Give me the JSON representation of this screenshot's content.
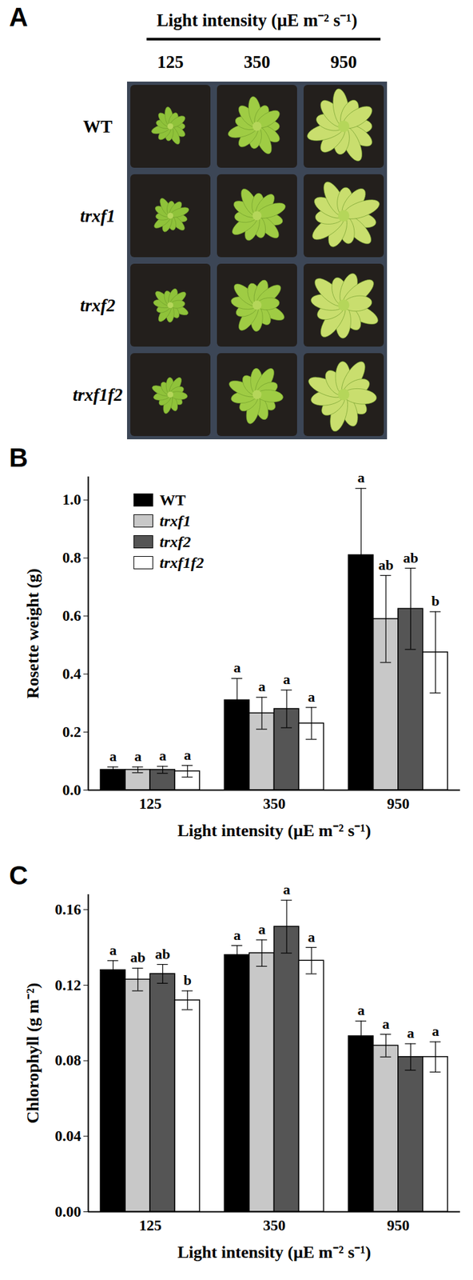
{
  "panel_a": {
    "panel": "A",
    "header": "Light intensity (µE m⁻² s⁻¹)",
    "columns": [
      "125",
      "350",
      "950"
    ],
    "rows": [
      "WT",
      "trxf1",
      "trxf2",
      "trxf1f2"
    ]
  },
  "chart_data": [
    {
      "panel": "B",
      "type": "bar",
      "categories": [
        "125",
        "350",
        "950"
      ],
      "xlabel": "Light intensity (µE m⁻² s⁻¹)",
      "ylabel": "Rosette weight (g)",
      "ylim": [
        0,
        1.08
      ],
      "yticks": [
        {
          "value": 0,
          "label": "0.0"
        },
        0.2,
        0.4,
        0.6,
        0.8,
        {
          "value": 1,
          "label": "1.0"
        }
      ],
      "legend": "top-left",
      "series": [
        {
          "name": "WT",
          "color": "#000000",
          "values": [
            0.07,
            0.31,
            0.81
          ],
          "errors": [
            0.01,
            0.075,
            0.23
          ],
          "letters": [
            "a",
            "a",
            "a"
          ]
        },
        {
          "name": "trxf1",
          "color": "#c8c8c8",
          "values": [
            0.07,
            0.265,
            0.59
          ],
          "errors": [
            0.01,
            0.055,
            0.15
          ],
          "letters": [
            "a",
            "a",
            "ab"
          ]
        },
        {
          "name": "trxf2",
          "color": "#555555",
          "values": [
            0.07,
            0.28,
            0.625
          ],
          "errors": [
            0.012,
            0.065,
            0.14
          ],
          "letters": [
            "a",
            "a",
            "ab"
          ]
        },
        {
          "name": "trxf1f2",
          "color": "#ffffff",
          "values": [
            0.065,
            0.23,
            0.475
          ],
          "errors": [
            0.02,
            0.055,
            0.14
          ],
          "letters": [
            "a",
            "a",
            "b"
          ]
        }
      ]
    },
    {
      "panel": "C",
      "type": "bar",
      "categories": [
        "125",
        "350",
        "950"
      ],
      "xlabel": "Light intensity (µE m⁻² s⁻¹)",
      "ylabel": "Chlorophyll (g m⁻²)",
      "ylim": [
        0,
        0.168
      ],
      "yticks": [
        {
          "value": 0,
          "label": "0.00"
        },
        0.04,
        0.08,
        0.12,
        0.16
      ],
      "series": [
        {
          "name": "WT",
          "color": "#000000",
          "values": [
            0.128,
            0.136,
            0.093
          ],
          "errors": [
            0.005,
            0.005,
            0.008
          ],
          "letters": [
            "a",
            "a",
            "a"
          ]
        },
        {
          "name": "trxf1",
          "color": "#c8c8c8",
          "values": [
            0.123,
            0.137,
            0.088
          ],
          "errors": [
            0.006,
            0.007,
            0.006
          ],
          "letters": [
            "ab",
            "a",
            "a"
          ]
        },
        {
          "name": "trxf2",
          "color": "#555555",
          "values": [
            0.126,
            0.151,
            0.082
          ],
          "errors": [
            0.005,
            0.014,
            0.007
          ],
          "letters": [
            "ab",
            "a",
            "a"
          ]
        },
        {
          "name": "trxf1f2",
          "color": "#ffffff",
          "values": [
            0.112,
            0.133,
            0.082
          ],
          "errors": [
            0.005,
            0.007,
            0.008
          ],
          "letters": [
            "b",
            "a",
            "a"
          ]
        }
      ]
    }
  ]
}
